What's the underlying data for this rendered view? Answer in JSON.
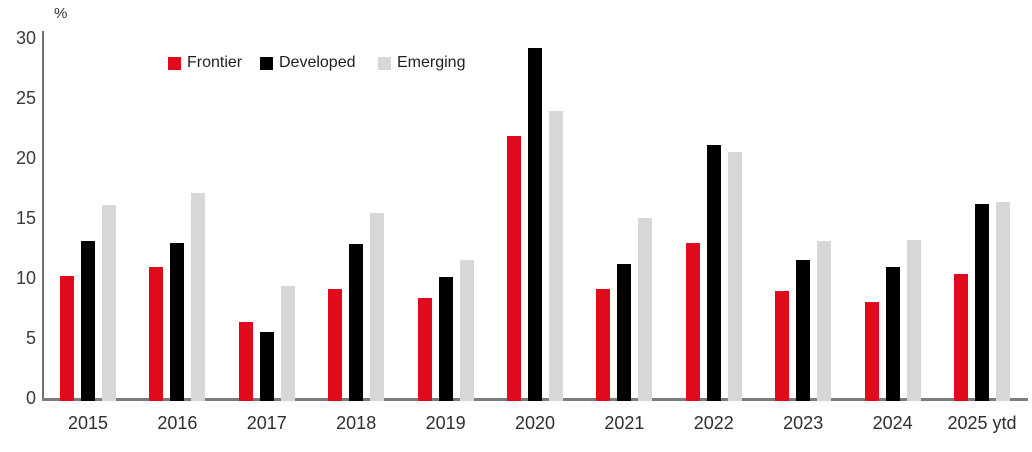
{
  "chart_data": {
    "type": "bar",
    "title": "",
    "ylabel": "%",
    "xlabel": "",
    "ylim": [
      0,
      30
    ],
    "y_ticks": [
      0,
      5,
      10,
      15,
      20,
      25,
      30
    ],
    "grid": false,
    "legend_position": "top-left",
    "categories": [
      "2015",
      "2016",
      "2017",
      "2018",
      "2019",
      "2020",
      "2021",
      "2022",
      "2023",
      "2024",
      "2025 ytd"
    ],
    "series": [
      {
        "name": "Frontier",
        "color": "#e1091c",
        "values": [
          10.2,
          10.9,
          6.3,
          9.1,
          8.3,
          21.8,
          9.1,
          12.9,
          8.9,
          8.0,
          10.3
        ]
      },
      {
        "name": "Developed",
        "color": "#000000",
        "values": [
          13.1,
          12.9,
          5.5,
          12.8,
          10.1,
          29.2,
          11.2,
          21.1,
          11.5,
          10.9,
          16.2
        ]
      },
      {
        "name": "Emerging",
        "color": "#d7d7d7",
        "values": [
          16.1,
          17.1,
          9.3,
          15.4,
          11.5,
          23.9,
          15.0,
          20.5,
          13.1,
          13.2,
          16.3
        ]
      }
    ],
    "axis_colors": {
      "axis_line": "#707070",
      "baseline": "#7d7d7d",
      "tick_text": "#3a3a3a"
    }
  }
}
